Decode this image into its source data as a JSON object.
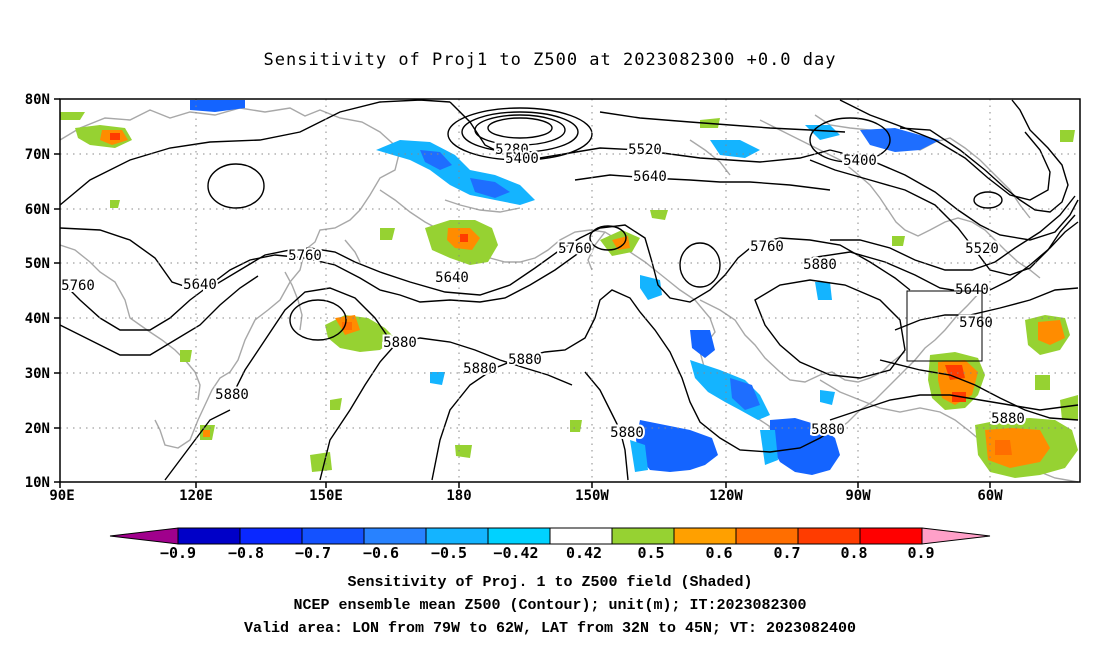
{
  "title": "Sensitivity of Proj1 to Z500 at 2023082300 +0.0 day",
  "map": {
    "lat_labels": [
      "80N",
      "70N",
      "60N",
      "50N",
      "40N",
      "30N",
      "20N",
      "10N"
    ],
    "lon_labels": [
      "90E",
      "120E",
      "150E",
      "180",
      "150W",
      "120W",
      "90W",
      "60W"
    ],
    "contour_labels": [
      "5280",
      "5400",
      "5520",
      "5640",
      "5400",
      "5760",
      "5640",
      "5640",
      "5760",
      "5760",
      "5880",
      "5520",
      "5640",
      "5760",
      "5760",
      "5880",
      "5880",
      "5880",
      "5880",
      "5880",
      "5880"
    ],
    "box": {
      "lon_from": "79W",
      "lon_to": "62W",
      "lat_from": "32N",
      "lat_to": "45N"
    }
  },
  "colorbar": {
    "labels": [
      "−0.9",
      "−0.8",
      "−0.7",
      "−0.6",
      "−0.5",
      "−0.42",
      "0.42",
      "0.5",
      "0.6",
      "0.7",
      "0.8",
      "0.9"
    ],
    "colors": [
      "#a0008c",
      "#0000c8",
      "#0a28ff",
      "#1452ff",
      "#2882ff",
      "#14b4ff",
      "#00d2ff",
      "#ffffff",
      "#96d232",
      "#ffa000",
      "#ff6e00",
      "#ff3c00",
      "#ff0000",
      "#ffa0c8"
    ]
  },
  "footer": {
    "line1": "Sensitivity of Proj. 1 to Z500 field (Shaded)",
    "line2": "NCEP ensemble mean Z500 (Contour); unit(m); IT:2023082300",
    "line3": "Valid area: LON from 79W to 62W, LAT from 32N to 45N; VT: 2023082400"
  }
}
